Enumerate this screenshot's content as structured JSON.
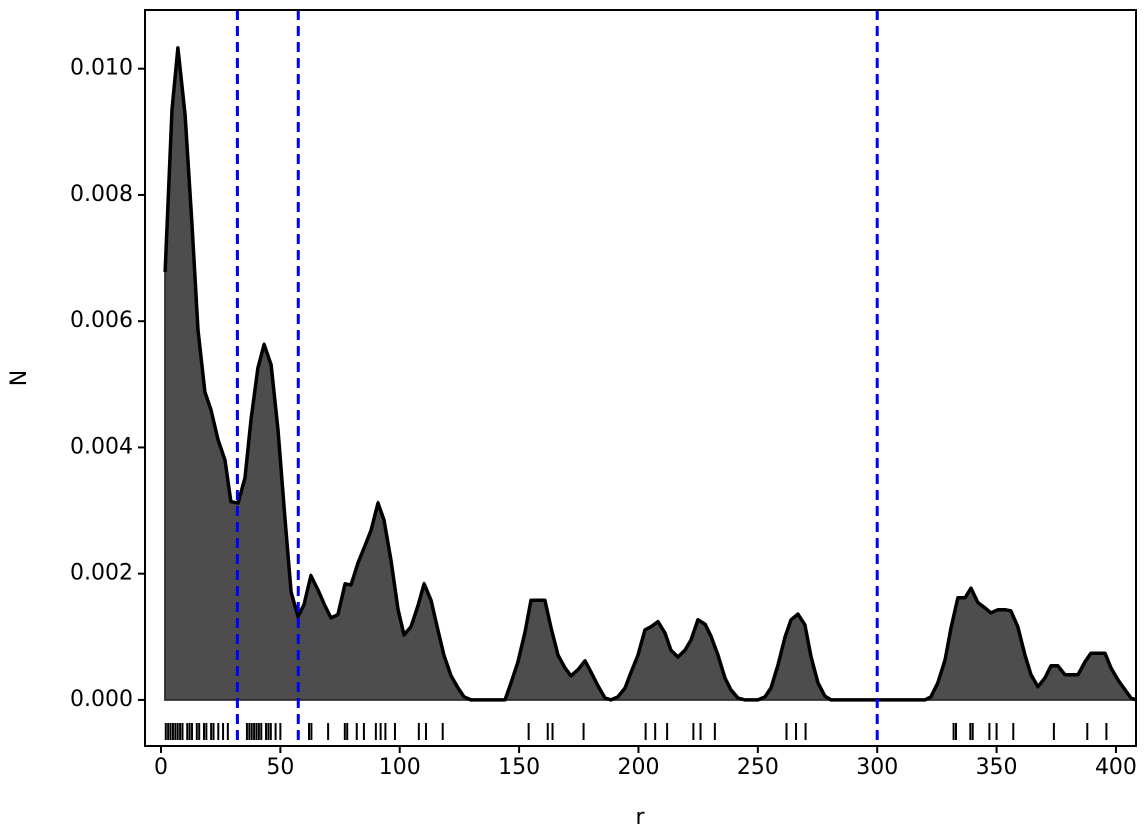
{
  "chart_data": {
    "type": "density",
    "xlabel": "r",
    "ylabel": "N",
    "xlim": [
      -6.7,
      408.4
    ],
    "ylim": [
      -0.00073,
      0.01093
    ],
    "xticks": [
      0,
      50,
      100,
      150,
      200,
      250,
      300,
      350,
      400
    ],
    "yticks": [
      {
        "value": 0,
        "label": "0.000"
      },
      {
        "value": 0.002,
        "label": "0.002"
      },
      {
        "value": 0.004,
        "label": "0.004"
      },
      {
        "value": 0.006,
        "label": "0.006"
      },
      {
        "value": 0.008,
        "label": "0.008"
      },
      {
        "value": 0.01,
        "label": "0.010"
      }
    ],
    "color": "#4d4d4d",
    "line_color": "#000000",
    "x": [
      1.7,
      4.6,
      7.1,
      10.1,
      13.0,
      15.5,
      18.4,
      20.9,
      23.9,
      26.8,
      29.3,
      32.3,
      35.2,
      37.7,
      40.6,
      43.2,
      46.1,
      49.0,
      52.0,
      54.5,
      57.4,
      59.9,
      62.8,
      65.8,
      68.7,
      71.2,
      74.1,
      77.1,
      79.6,
      82.5,
      85.4,
      88.0,
      90.9,
      93.4,
      96.3,
      99.3,
      101.8,
      104.7,
      107.6,
      110.2,
      113.1,
      116.0,
      118.5,
      121.5,
      124.4,
      126.9,
      129.8,
      132.8,
      135.7,
      138.2,
      141.2,
      144.1,
      146.6,
      149.5,
      152.5,
      155.0,
      157.9,
      160.8,
      163.4,
      166.3,
      169.2,
      171.7,
      174.7,
      177.6,
      180.1,
      183.1,
      186.0,
      188.5,
      191.4,
      194.4,
      196.9,
      199.8,
      202.7,
      205.3,
      208.2,
      211.1,
      213.6,
      216.5,
      219.5,
      222.0,
      224.9,
      227.9,
      230.4,
      233.3,
      236.2,
      238.7,
      241.7,
      244.6,
      247.1,
      250.1,
      253.0,
      255.5,
      258.4,
      261.4,
      263.9,
      266.8,
      269.7,
      272.3,
      275.2,
      278.1,
      280.6,
      290.0,
      300.0,
      310.0,
      320.0,
      322.5,
      325.4,
      328.4,
      330.9,
      333.8,
      336.8,
      339.3,
      342.2,
      345.1,
      347.6,
      350.6,
      353.5,
      356.0,
      358.9,
      361.9,
      364.4,
      367.3,
      370.3,
      372.8,
      375.7,
      378.6,
      381.2,
      384.1,
      387.0,
      389.5,
      392.5,
      395.4,
      397.9,
      400.8,
      403.8,
      406.3,
      408.4
    ],
    "values": [
      0.00678,
      0.00935,
      0.01033,
      0.00927,
      0.00753,
      0.00586,
      0.00488,
      0.0046,
      0.00412,
      0.0038,
      0.00314,
      0.00312,
      0.00352,
      0.00444,
      0.00526,
      0.00563,
      0.00531,
      0.00428,
      0.00285,
      0.00171,
      0.00132,
      0.00151,
      0.00197,
      0.00174,
      0.00149,
      0.0013,
      0.00135,
      0.00184,
      0.00182,
      0.00217,
      0.00244,
      0.00269,
      0.00312,
      0.00285,
      0.00222,
      0.00143,
      0.00103,
      0.00116,
      0.00149,
      0.00184,
      0.00158,
      0.00111,
      0.00071,
      0.00038,
      0.00019,
      5e-05,
      0,
      0,
      0,
      0,
      0,
      0,
      0.00027,
      0.0006,
      0.00108,
      0.00158,
      0.00158,
      0.00158,
      0.00114,
      0.00071,
      0.00051,
      0.00038,
      0.00048,
      0.00062,
      0.00044,
      0.00022,
      3e-05,
      0,
      5e-05,
      0.00019,
      0.00044,
      0.00071,
      0.00111,
      0.00116,
      0.00124,
      0.00106,
      0.00079,
      0.00068,
      0.00079,
      0.00095,
      0.00127,
      0.0012,
      0.00101,
      0.00071,
      0.00035,
      0.00016,
      3e-05,
      0,
      0,
      0,
      5e-05,
      0.00019,
      0.00055,
      0.001,
      0.00127,
      0.00136,
      0.00119,
      0.00068,
      0.00027,
      6e-05,
      0,
      0,
      0,
      0,
      0,
      5e-05,
      0.00027,
      0.00063,
      0.00114,
      0.00162,
      0.00162,
      0.00177,
      0.00154,
      0.00146,
      0.00138,
      0.00143,
      0.00143,
      0.00141,
      0.00116,
      0.00071,
      0.0004,
      0.00021,
      0.00035,
      0.00054,
      0.00054,
      0.0004,
      0.0004,
      0.0004,
      0.0006,
      0.00074,
      0.00074,
      0.00074,
      0.00051,
      0.00032,
      0.00016,
      3e-05,
      0
    ],
    "rug": [
      2,
      3,
      4,
      5,
      6,
      7,
      8,
      9,
      11,
      12,
      13,
      15,
      16,
      18,
      19,
      21,
      22,
      24,
      26,
      28,
      36,
      37,
      38,
      39,
      40,
      41,
      42,
      44,
      45,
      46,
      48,
      50,
      62,
      63,
      70,
      77,
      78,
      82,
      85,
      90,
      92,
      94,
      98,
      108,
      111,
      118,
      154,
      162,
      164,
      177,
      203,
      207,
      212,
      223,
      226,
      232,
      262,
      266,
      270,
      332,
      333,
      339,
      340,
      347,
      350,
      357,
      374,
      388,
      396
    ],
    "rug_color": "#000000",
    "vlines": [
      32,
      57.5,
      300
    ],
    "vline_color": "#0000ee"
  }
}
